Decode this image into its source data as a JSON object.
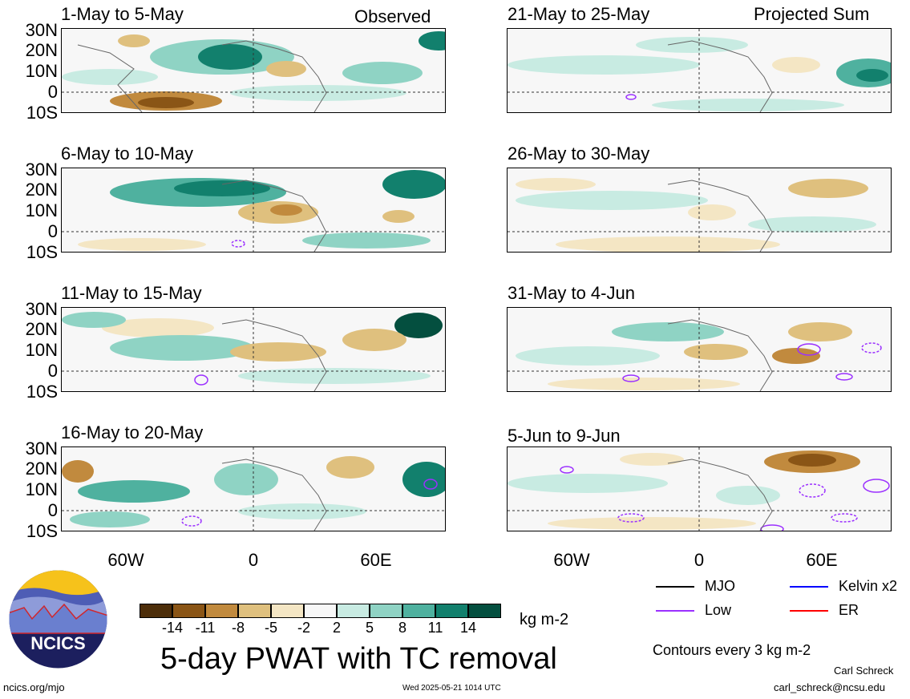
{
  "left_header": "Observed",
  "right_header": "Projected Sum",
  "lat_labels": [
    "30N",
    "20N",
    "10N",
    "0",
    "10S"
  ],
  "lon_labels": [
    "60W",
    "0",
    "60E"
  ],
  "panels_left": [
    {
      "title": "1-May to 5-May"
    },
    {
      "title": "6-May to 10-May"
    },
    {
      "title": "11-May to 15-May"
    },
    {
      "title": "16-May to 20-May"
    }
  ],
  "panels_right": [
    {
      "title": "21-May to 25-May"
    },
    {
      "title": "26-May to 30-May"
    },
    {
      "title": "31-May to 4-Jun"
    },
    {
      "title": "5-Jun to 9-Jun"
    }
  ],
  "colorbar": {
    "colors": [
      "#4d2e0a",
      "#8a5516",
      "#c18a3e",
      "#dfc07e",
      "#f4e6c4",
      "#f7f7f7",
      "#c8ebe2",
      "#8fd3c4",
      "#4fb19f",
      "#12806d",
      "#044f3f"
    ],
    "labels": [
      "-14",
      "-11",
      "-8",
      "-5",
      "-2",
      "2",
      "5",
      "8",
      "11",
      "14"
    ],
    "units": "kg m-2"
  },
  "legend": {
    "mjo": {
      "label": "MJO",
      "color": "#000000"
    },
    "kelvin": {
      "label": "Kelvin x2",
      "color": "#0000ff"
    },
    "low": {
      "label": "Low",
      "color": "#9b30ff"
    },
    "er": {
      "label": "ER",
      "color": "#ff0000"
    },
    "contour_note": "Contours every 3 kg m-2"
  },
  "logo_text": "NCICS",
  "main_title": "5-day PWAT with TC removal",
  "footer": {
    "url": "ncics.org/mjo",
    "timestamp": "Wed 2025-05-21 1014 UTC",
    "author": "Carl Schreck",
    "email": "carl_schreck@ncsu.edu"
  }
}
